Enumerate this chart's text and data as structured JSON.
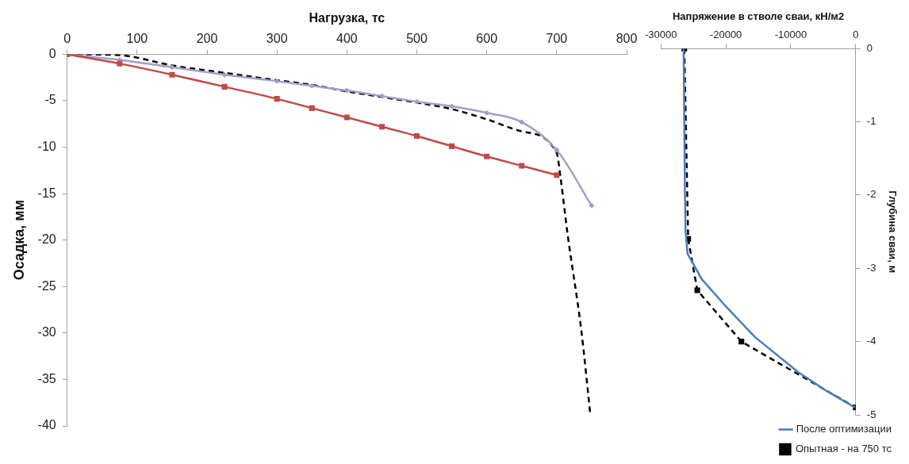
{
  "chart_data": [
    {
      "type": "line",
      "xlabel": "Нагрузка, тс",
      "ylabel": "Осадка, мм",
      "xlim": [
        0,
        800
      ],
      "xticks": [
        0,
        100,
        200,
        300,
        400,
        500,
        600,
        700,
        800
      ],
      "ylim": [
        -40,
        0
      ],
      "yticks": [
        -40,
        -35,
        -30,
        -25,
        -20,
        -15,
        -10,
        -5,
        0
      ],
      "grid": false,
      "legend": false,
      "series": [
        {
          "color": "#be4b48",
          "marker": "square",
          "line_style": "solid",
          "x": [
            0,
            75,
            150,
            225,
            300,
            350,
            400,
            450,
            500,
            550,
            600,
            650,
            700
          ],
          "values": [
            0,
            -1.0,
            -2.2,
            -3.5,
            -4.8,
            -5.8,
            -6.8,
            -7.8,
            -8.8,
            -9.9,
            -11.0,
            -12.0,
            -13.0
          ]
        },
        {
          "color": "#a99bc8",
          "marker": "diamond",
          "line_style": "solid",
          "x": [
            0,
            75,
            150,
            225,
            300,
            350,
            400,
            450,
            500,
            550,
            600,
            650,
            700,
            750
          ],
          "values": [
            0,
            -0.6,
            -1.4,
            -2.2,
            -2.9,
            -3.4,
            -3.9,
            -4.5,
            -5.1,
            -5.6,
            -6.3,
            -7.3,
            -10.3,
            -16.3
          ]
        },
        {
          "color": "#000000",
          "marker": "none",
          "line_style": "dashed",
          "x": [
            0,
            75,
            150,
            225,
            300,
            350,
            400,
            450,
            500,
            550,
            600,
            650,
            700,
            705,
            716,
            735,
            748
          ],
          "values": [
            0,
            -0.1,
            -1.2,
            -2.0,
            -2.8,
            -3.3,
            -4.0,
            -4.6,
            -5.2,
            -5.9,
            -7.0,
            -8.3,
            -10.6,
            -13,
            -19.6,
            -29.6,
            -38.7
          ]
        }
      ]
    },
    {
      "type": "line",
      "xlabel": "Напряжение в стволе сваи, кН/м2",
      "ylabel": "Глубина сваи, м",
      "xlim": [
        -30000,
        0
      ],
      "xticks": [
        -30000,
        -20000,
        -10000,
        0
      ],
      "ylim": [
        -5,
        0
      ],
      "yticks": [
        -5,
        -4,
        -3,
        -2,
        -1,
        0
      ],
      "grid": false,
      "legend": "bottom",
      "series": [
        {
          "name": "После оптимизации",
          "color": "#4a7ebb",
          "marker": "none",
          "line_style": "solid",
          "x": [
            -26500,
            -26400,
            -26300,
            -26200,
            -25900,
            -23700,
            -19900,
            -15500,
            -8800,
            -4400,
            -100
          ],
          "values": [
            0,
            -1,
            -2,
            -2.5,
            -2.8,
            -3.15,
            -3.53,
            -3.94,
            -4.42,
            -4.68,
            -4.9
          ]
        },
        {
          "name": "Опытная - на 750 тс",
          "color": "#000000",
          "marker": "square",
          "line_style": "dashed",
          "x": [
            -26400,
            -25800,
            -24400,
            -17600,
            0
          ],
          "values": [
            0,
            -2.6,
            -3.3,
            -4.0,
            -4.9
          ]
        }
      ]
    }
  ]
}
